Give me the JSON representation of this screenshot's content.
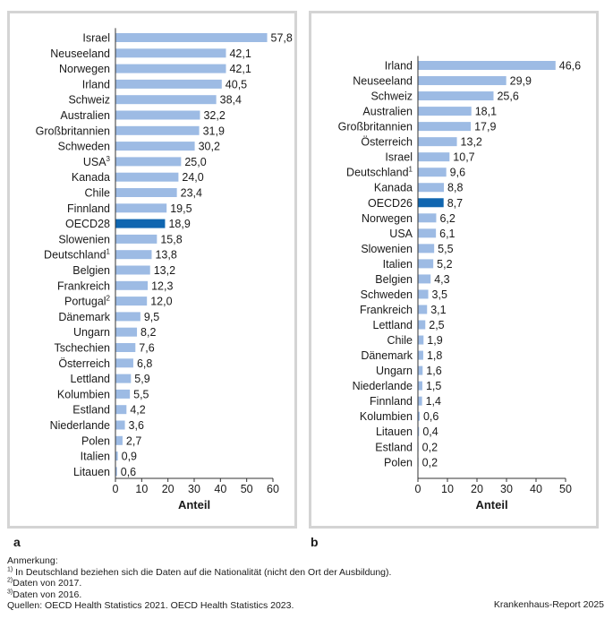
{
  "chart_data": [
    {
      "type": "bar",
      "orientation": "horizontal",
      "panel_label": "a",
      "xlabel": "Anteil",
      "xlim": [
        0,
        60
      ],
      "xticks": [
        "0",
        "10",
        "20",
        "30",
        "40",
        "50",
        "60"
      ],
      "highlight": "OECD28",
      "categories": [
        {
          "name": "Israel",
          "sup": "",
          "value": 57.8,
          "label": "57,8"
        },
        {
          "name": "Neuseeland",
          "sup": "",
          "value": 42.1,
          "label": "42,1"
        },
        {
          "name": "Norwegen",
          "sup": "",
          "value": 42.1,
          "label": "42,1"
        },
        {
          "name": "Irland",
          "sup": "",
          "value": 40.5,
          "label": "40,5"
        },
        {
          "name": "Schweiz",
          "sup": "",
          "value": 38.4,
          "label": "38,4"
        },
        {
          "name": "Australien",
          "sup": "",
          "value": 32.2,
          "label": "32,2"
        },
        {
          "name": "Großbritannien",
          "sup": "",
          "value": 31.9,
          "label": "31,9"
        },
        {
          "name": "Schweden",
          "sup": "",
          "value": 30.2,
          "label": "30,2"
        },
        {
          "name": "USA",
          "sup": "3",
          "value": 25.0,
          "label": "25,0"
        },
        {
          "name": "Kanada",
          "sup": "",
          "value": 24.0,
          "label": "24,0"
        },
        {
          "name": "Chile",
          "sup": "",
          "value": 23.4,
          "label": "23,4"
        },
        {
          "name": "Finnland",
          "sup": "",
          "value": 19.5,
          "label": "19,5"
        },
        {
          "name": "OECD28",
          "sup": "",
          "value": 18.9,
          "label": "18,9"
        },
        {
          "name": "Slowenien",
          "sup": "",
          "value": 15.8,
          "label": "15,8"
        },
        {
          "name": "Deutschland",
          "sup": "1",
          "value": 13.8,
          "label": "13,8"
        },
        {
          "name": "Belgien",
          "sup": "",
          "value": 13.2,
          "label": "13,2"
        },
        {
          "name": "Frankreich",
          "sup": "",
          "value": 12.3,
          "label": "12,3"
        },
        {
          "name": "Portugal",
          "sup": "2",
          "value": 12.0,
          "label": "12,0"
        },
        {
          "name": "Dänemark",
          "sup": "",
          "value": 9.5,
          "label": "9,5"
        },
        {
          "name": "Ungarn",
          "sup": "",
          "value": 8.2,
          "label": "8,2"
        },
        {
          "name": "Tschechien",
          "sup": "",
          "value": 7.6,
          "label": "7,6"
        },
        {
          "name": "Österreich",
          "sup": "",
          "value": 6.8,
          "label": "6,8"
        },
        {
          "name": "Lettland",
          "sup": "",
          "value": 5.9,
          "label": "5,9"
        },
        {
          "name": "Kolumbien",
          "sup": "",
          "value": 5.5,
          "label": "5,5"
        },
        {
          "name": "Estland",
          "sup": "",
          "value": 4.2,
          "label": "4,2"
        },
        {
          "name": "Niederlande",
          "sup": "",
          "value": 3.6,
          "label": "3,6"
        },
        {
          "name": "Polen",
          "sup": "",
          "value": 2.7,
          "label": "2,7"
        },
        {
          "name": "Italien",
          "sup": "",
          "value": 0.9,
          "label": "0,9"
        },
        {
          "name": "Litauen",
          "sup": "",
          "value": 0.6,
          "label": "0,6"
        }
      ]
    },
    {
      "type": "bar",
      "orientation": "horizontal",
      "panel_label": "b",
      "xlabel": "Anteil",
      "xlim": [
        0,
        50
      ],
      "xticks": [
        "0",
        "10",
        "20",
        "30",
        "40",
        "50"
      ],
      "highlight": "OECD26",
      "categories": [
        {
          "name": "Irland",
          "sup": "",
          "value": 46.6,
          "label": "46,6"
        },
        {
          "name": "Neuseeland",
          "sup": "",
          "value": 29.9,
          "label": "29,9"
        },
        {
          "name": "Schweiz",
          "sup": "",
          "value": 25.6,
          "label": "25,6"
        },
        {
          "name": "Australien",
          "sup": "",
          "value": 18.1,
          "label": "18,1"
        },
        {
          "name": "Großbritannien",
          "sup": "",
          "value": 17.9,
          "label": "17,9"
        },
        {
          "name": "Österreich",
          "sup": "",
          "value": 13.2,
          "label": "13,2"
        },
        {
          "name": "Israel",
          "sup": "",
          "value": 10.7,
          "label": "10,7"
        },
        {
          "name": "Deutschland",
          "sup": "1",
          "value": 9.6,
          "label": "9,6"
        },
        {
          "name": "Kanada",
          "sup": "",
          "value": 8.8,
          "label": "8,8"
        },
        {
          "name": "OECD26",
          "sup": "",
          "value": 8.7,
          "label": "8,7"
        },
        {
          "name": "Norwegen",
          "sup": "",
          "value": 6.2,
          "label": "6,2"
        },
        {
          "name": "USA",
          "sup": "",
          "value": 6.1,
          "label": "6,1"
        },
        {
          "name": "Slowenien",
          "sup": "",
          "value": 5.5,
          "label": "5,5"
        },
        {
          "name": "Italien",
          "sup": "",
          "value": 5.2,
          "label": "5,2"
        },
        {
          "name": "Belgien",
          "sup": "",
          "value": 4.3,
          "label": "4,3"
        },
        {
          "name": "Schweden",
          "sup": "",
          "value": 3.5,
          "label": "3,5"
        },
        {
          "name": "Frankreich",
          "sup": "",
          "value": 3.1,
          "label": "3,1"
        },
        {
          "name": "Lettland",
          "sup": "",
          "value": 2.5,
          "label": "2,5"
        },
        {
          "name": "Chile",
          "sup": "",
          "value": 1.9,
          "label": "1,9"
        },
        {
          "name": "Dänemark",
          "sup": "",
          "value": 1.8,
          "label": "1,8"
        },
        {
          "name": "Ungarn",
          "sup": "",
          "value": 1.6,
          "label": "1,6"
        },
        {
          "name": "Niederlande",
          "sup": "",
          "value": 1.5,
          "label": "1,5"
        },
        {
          "name": "Finnland",
          "sup": "",
          "value": 1.4,
          "label": "1,4"
        },
        {
          "name": "Kolumbien",
          "sup": "",
          "value": 0.6,
          "label": "0,6"
        },
        {
          "name": "Litauen",
          "sup": "",
          "value": 0.4,
          "label": "0,4"
        },
        {
          "name": "Estland",
          "sup": "",
          "value": 0.2,
          "label": "0,2"
        },
        {
          "name": "Polen",
          "sup": "",
          "value": 0.2,
          "label": "0,2"
        }
      ]
    }
  ],
  "colors": {
    "bar": "#9dbbe4",
    "highlight": "#1066b0",
    "frame": "#d4d4d4",
    "axis": "#333333"
  },
  "notes": {
    "title": "Anmerkung:",
    "n1_mark": "1)",
    "n1": "In Deutschland beziehen sich die Daten auf die Nationalität (nicht den Ort der Ausbildung).",
    "n2_mark": "2)",
    "n2": "Daten von 2017.",
    "n3_mark": "3)",
    "n3": "Daten von 2016.",
    "sources": "Quellen: OECD Health Statistics 2021. OECD Health Statistics 2023."
  },
  "report": "Krankenhaus-Report 2025"
}
